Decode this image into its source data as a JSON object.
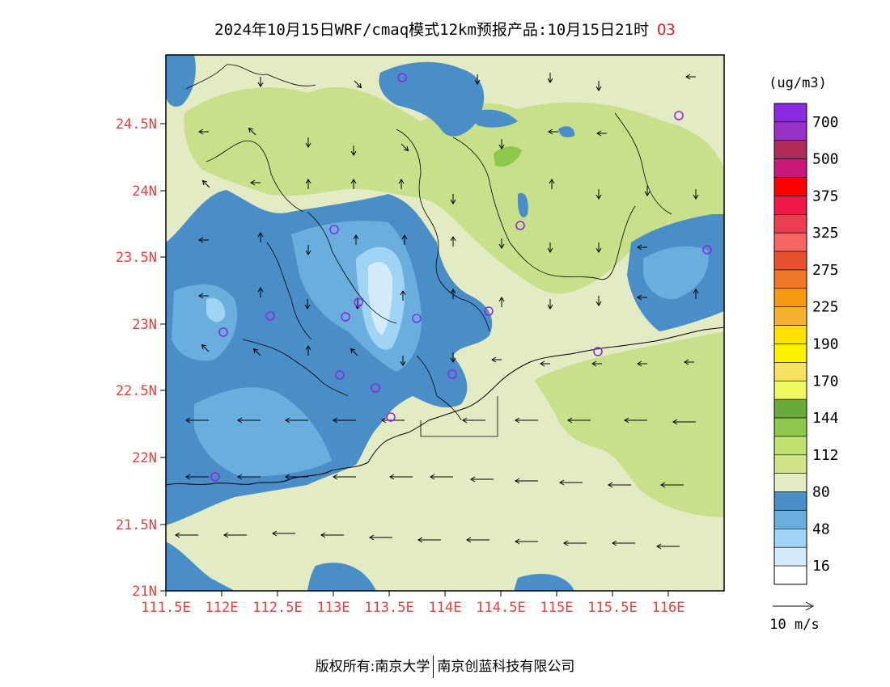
{
  "title": {
    "text": "2024年10月15日WRF/cmaq模式12km预报产品:10月15日21时",
    "species": "O3"
  },
  "map": {
    "lat_labels": [
      "24.5N",
      "24N",
      "23.5N",
      "23N",
      "22.5N",
      "22N",
      "21.5N",
      "21N"
    ],
    "lon_labels": [
      "111.5E",
      "112E",
      "112.5E",
      "113E",
      "113.5E",
      "114E",
      "114.5E",
      "115E",
      "115.5E",
      "116E"
    ],
    "label_color": "#e8413a"
  },
  "legend": {
    "unit": "(ug/m3)",
    "levels": [
      {
        "color": "#8a2be2",
        "label": "700"
      },
      {
        "color": "#9b30c8",
        "label": ""
      },
      {
        "color": "#b02a5a",
        "label": "500"
      },
      {
        "color": "#c8187a",
        "label": ""
      },
      {
        "color": "#ff0000",
        "label": "375"
      },
      {
        "color": "#f0184a",
        "label": ""
      },
      {
        "color": "#f03c50",
        "label": "325"
      },
      {
        "color": "#f86464",
        "label": ""
      },
      {
        "color": "#e85030",
        "label": "275"
      },
      {
        "color": "#f07828",
        "label": ""
      },
      {
        "color": "#f89a10",
        "label": "225"
      },
      {
        "color": "#f8b030",
        "label": ""
      },
      {
        "color": "#ffe000",
        "label": "190"
      },
      {
        "color": "#fff000",
        "label": ""
      },
      {
        "color": "#f8e060",
        "label": "170"
      },
      {
        "color": "#f0f860",
        "label": ""
      },
      {
        "color": "#6aaa3a",
        "label": "144"
      },
      {
        "color": "#8cc84a",
        "label": ""
      },
      {
        "color": "#c0e070",
        "label": "112"
      },
      {
        "color": "#d0e48a",
        "label": ""
      },
      {
        "color": "#e2ebc4",
        "label": "80"
      },
      {
        "color": "#4a8ec8",
        "label": ""
      },
      {
        "color": "#6aaede",
        "label": "48"
      },
      {
        "color": "#a0d4f4",
        "label": ""
      },
      {
        "color": "#d4ecfa",
        "label": "16"
      },
      {
        "color": "#ffffff",
        "label": ""
      }
    ],
    "wind_ref_label": "10 m/s"
  },
  "footer": {
    "left": "版权所有:南京大学",
    "right": "南京创蓝科技有限公司"
  }
}
